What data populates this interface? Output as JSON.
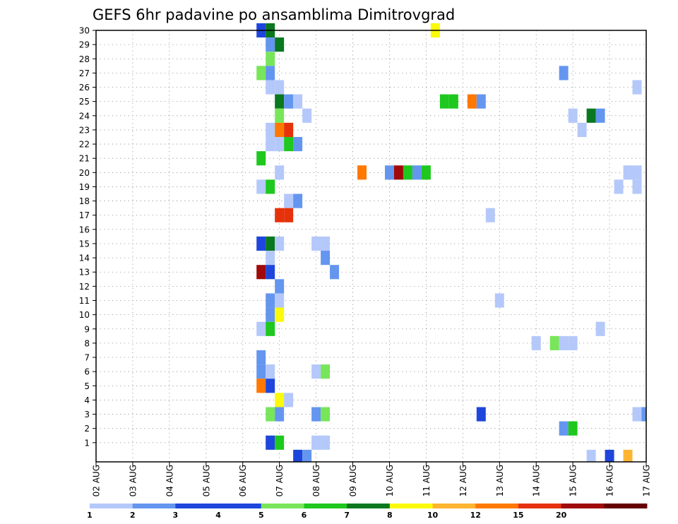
{
  "chart_data": {
    "type": "heatmap",
    "title": "GEFS 6hr padavine po ansamblima Dimitrovgrad",
    "x_tick_labels": [
      "02 AUG",
      "03 AUG",
      "04 AUG",
      "05 AUG",
      "06 AUG",
      "07 AUG",
      "08 AUG",
      "09 AUG",
      "10 AUG",
      "11 AUG",
      "12 AUG",
      "13 AUG",
      "14 AUG",
      "15 AUG",
      "16 AUG",
      "17 AUG"
    ],
    "y_tick_labels": [
      "1",
      "2",
      "3",
      "4",
      "5",
      "6",
      "7",
      "8",
      "9",
      "10",
      "11",
      "12",
      "13",
      "14",
      "15",
      "16",
      "17",
      "18",
      "19",
      "20",
      "21",
      "22",
      "23",
      "24",
      "25",
      "26",
      "27",
      "28",
      "29",
      "30"
    ],
    "x_range_days": [
      0,
      15
    ],
    "y_range_members": [
      0,
      30
    ],
    "step_hours": 6,
    "grid": true,
    "colorbar": {
      "levels": [
        "1",
        "2",
        "3",
        "4",
        "5",
        "6",
        "7",
        "8",
        "10",
        "12",
        "15",
        "20"
      ],
      "colors": [
        "#b4c8fa",
        "#6496f0",
        "#1e46dc",
        "#1e46dc",
        "#78e65a",
        "#1ec81e",
        "#0a781e",
        "#fafa0a",
        "#ffb432",
        "#ff7800",
        "#e6320a",
        "#a00a0a",
        "#640000"
      ]
    },
    "cells": [
      {
        "day": 4.5,
        "member": 30,
        "level": 3
      },
      {
        "day": 4.75,
        "member": 30,
        "level": 7
      },
      {
        "day": 9.25,
        "member": 30,
        "level": 8
      },
      {
        "day": 4.75,
        "member": 29,
        "level": 2
      },
      {
        "day": 5.0,
        "member": 29,
        "level": 7
      },
      {
        "day": 4.75,
        "member": 28,
        "level": 5
      },
      {
        "day": 4.5,
        "member": 27,
        "level": 5
      },
      {
        "day": 4.75,
        "member": 27,
        "level": 2
      },
      {
        "day": 12.75,
        "member": 27,
        "level": 2
      },
      {
        "day": 4.75,
        "member": 26,
        "level": 1
      },
      {
        "day": 5.0,
        "member": 26,
        "level": 1
      },
      {
        "day": 14.75,
        "member": 26,
        "level": 1
      },
      {
        "day": 5.0,
        "member": 25,
        "level": 7
      },
      {
        "day": 5.25,
        "member": 25,
        "level": 2
      },
      {
        "day": 5.5,
        "member": 25,
        "level": 1
      },
      {
        "day": 9.5,
        "member": 25,
        "level": 6
      },
      {
        "day": 9.75,
        "member": 25,
        "level": 6
      },
      {
        "day": 10.25,
        "member": 25,
        "level": 12
      },
      {
        "day": 10.5,
        "member": 25,
        "level": 2
      },
      {
        "day": 5.0,
        "member": 24,
        "level": 5
      },
      {
        "day": 5.75,
        "member": 24,
        "level": 1
      },
      {
        "day": 13.0,
        "member": 24,
        "level": 1
      },
      {
        "day": 13.5,
        "member": 24,
        "level": 7
      },
      {
        "day": 13.75,
        "member": 24,
        "level": 2
      },
      {
        "day": 4.75,
        "member": 23,
        "level": 1
      },
      {
        "day": 5.0,
        "member": 23,
        "level": 12
      },
      {
        "day": 5.25,
        "member": 23,
        "level": 15
      },
      {
        "day": 13.25,
        "member": 23,
        "level": 1
      },
      {
        "day": 4.75,
        "member": 22,
        "level": 1
      },
      {
        "day": 5.0,
        "member": 22,
        "level": 1
      },
      {
        "day": 5.25,
        "member": 22,
        "level": 6
      },
      {
        "day": 5.5,
        "member": 22,
        "level": 2
      },
      {
        "day": 4.5,
        "member": 21,
        "level": 6
      },
      {
        "day": 5.0,
        "member": 20,
        "level": 1
      },
      {
        "day": 7.25,
        "member": 20,
        "level": 12
      },
      {
        "day": 8.0,
        "member": 20,
        "level": 2
      },
      {
        "day": 8.25,
        "member": 20,
        "level": 20
      },
      {
        "day": 8.5,
        "member": 20,
        "level": 6
      },
      {
        "day": 8.75,
        "member": 20,
        "level": 2
      },
      {
        "day": 9.0,
        "member": 20,
        "level": 6
      },
      {
        "day": 14.5,
        "member": 20,
        "level": 1
      },
      {
        "day": 14.75,
        "member": 20,
        "level": 1
      },
      {
        "day": 4.5,
        "member": 19,
        "level": 1
      },
      {
        "day": 4.75,
        "member": 19,
        "level": 6
      },
      {
        "day": 14.25,
        "member": 19,
        "level": 1
      },
      {
        "day": 14.75,
        "member": 19,
        "level": 1
      },
      {
        "day": 5.25,
        "member": 18,
        "level": 1
      },
      {
        "day": 5.5,
        "member": 18,
        "level": 2
      },
      {
        "day": 5.0,
        "member": 17,
        "level": 15
      },
      {
        "day": 5.25,
        "member": 17,
        "level": 15
      },
      {
        "day": 10.75,
        "member": 17,
        "level": 1
      },
      {
        "day": 4.5,
        "member": 15,
        "level": 3
      },
      {
        "day": 4.75,
        "member": 15,
        "level": 7
      },
      {
        "day": 5.0,
        "member": 15,
        "level": 1
      },
      {
        "day": 6.0,
        "member": 15,
        "level": 1
      },
      {
        "day": 6.25,
        "member": 15,
        "level": 1
      },
      {
        "day": 4.75,
        "member": 14,
        "level": 1
      },
      {
        "day": 6.25,
        "member": 14,
        "level": 2
      },
      {
        "day": 4.5,
        "member": 13,
        "level": 20
      },
      {
        "day": 4.75,
        "member": 13,
        "level": 3
      },
      {
        "day": 6.5,
        "member": 13,
        "level": 2
      },
      {
        "day": 5.0,
        "member": 12,
        "level": 2
      },
      {
        "day": 4.75,
        "member": 11,
        "level": 2
      },
      {
        "day": 5.0,
        "member": 11,
        "level": 1
      },
      {
        "day": 11.0,
        "member": 11,
        "level": 1
      },
      {
        "day": 4.75,
        "member": 10,
        "level": 2
      },
      {
        "day": 5.0,
        "member": 10,
        "level": 8
      },
      {
        "day": 4.5,
        "member": 9,
        "level": 1
      },
      {
        "day": 4.75,
        "member": 9,
        "level": 6
      },
      {
        "day": 13.75,
        "member": 9,
        "level": 1
      },
      {
        "day": 12.0,
        "member": 8,
        "level": 1
      },
      {
        "day": 12.5,
        "member": 8,
        "level": 5
      },
      {
        "day": 12.75,
        "member": 8,
        "level": 1
      },
      {
        "day": 13.0,
        "member": 8,
        "level": 1
      },
      {
        "day": 4.5,
        "member": 7,
        "level": 2
      },
      {
        "day": 4.5,
        "member": 6,
        "level": 2
      },
      {
        "day": 4.75,
        "member": 6,
        "level": 1
      },
      {
        "day": 6.0,
        "member": 6,
        "level": 1
      },
      {
        "day": 6.25,
        "member": 6,
        "level": 5
      },
      {
        "day": 4.5,
        "member": 5,
        "level": 12
      },
      {
        "day": 4.75,
        "member": 5,
        "level": 3
      },
      {
        "day": 5.0,
        "member": 4,
        "level": 8
      },
      {
        "day": 5.25,
        "member": 4,
        "level": 1
      },
      {
        "day": 4.75,
        "member": 3,
        "level": 5
      },
      {
        "day": 5.0,
        "member": 3,
        "level": 2
      },
      {
        "day": 6.0,
        "member": 3,
        "level": 2
      },
      {
        "day": 6.25,
        "member": 3,
        "level": 5
      },
      {
        "day": 10.5,
        "member": 3,
        "level": 3
      },
      {
        "day": 14.75,
        "member": 3,
        "level": 1
      },
      {
        "day": 15.0,
        "member": 3,
        "level": 2
      },
      {
        "day": 12.75,
        "member": 2,
        "level": 2
      },
      {
        "day": 13.0,
        "member": 2,
        "level": 6
      },
      {
        "day": 4.75,
        "member": 1,
        "level": 3
      },
      {
        "day": 5.0,
        "member": 1,
        "level": 6
      },
      {
        "day": 6.0,
        "member": 1,
        "level": 1
      },
      {
        "day": 6.25,
        "member": 1,
        "level": 1
      },
      {
        "day": 5.5,
        "member": 0,
        "level": 3
      },
      {
        "day": 5.75,
        "member": 0,
        "level": 2
      },
      {
        "day": 13.5,
        "member": 0,
        "level": 1
      },
      {
        "day": 14.0,
        "member": 0,
        "level": 3
      },
      {
        "day": 14.5,
        "member": 0,
        "level": 10
      }
    ]
  }
}
